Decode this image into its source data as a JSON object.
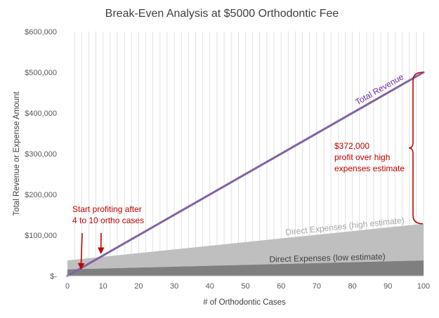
{
  "chart_data": {
    "type": "area",
    "title": "Break-Even Analysis at $5000 Orthodontic Fee",
    "xlabel": "# of Orthodontic Cases",
    "ylabel": "Total Revenue or Expense Amount",
    "xlim": [
      0,
      100
    ],
    "ylim": [
      0,
      600000
    ],
    "x_ticks": [
      "0",
      "10",
      "20",
      "30",
      "40",
      "50",
      "60",
      "70",
      "80",
      "90",
      "100"
    ],
    "y_ticks": [
      "$-",
      "$100,000",
      "$200,000",
      "$300,000",
      "$400,000",
      "$500,000",
      "$600,000"
    ],
    "grid": "vertical",
    "series": [
      {
        "name": "Direct Expenses (high estimate)",
        "kind": "area",
        "color": "#bfbfbf",
        "x": [
          0,
          100
        ],
        "y": [
          38000,
          128000
        ]
      },
      {
        "name": "Direct Expenses (low estimate)",
        "kind": "area",
        "color": "#7f7f7f",
        "x": [
          0,
          100
        ],
        "y": [
          16000,
          38000
        ]
      },
      {
        "name": "Total Revenue",
        "kind": "line",
        "color": "#8064a2",
        "x": [
          0,
          100
        ],
        "y": [
          0,
          500000
        ]
      }
    ],
    "annotations": {
      "profit_lines": [
        "$372,000",
        "profit over high",
        "expenses estimate"
      ],
      "breakeven_lines": [
        "Start profiting after",
        "4 to 10 ortho cases"
      ],
      "breakeven_points": [
        4,
        10
      ],
      "annotation_color": "#c00000"
    }
  }
}
